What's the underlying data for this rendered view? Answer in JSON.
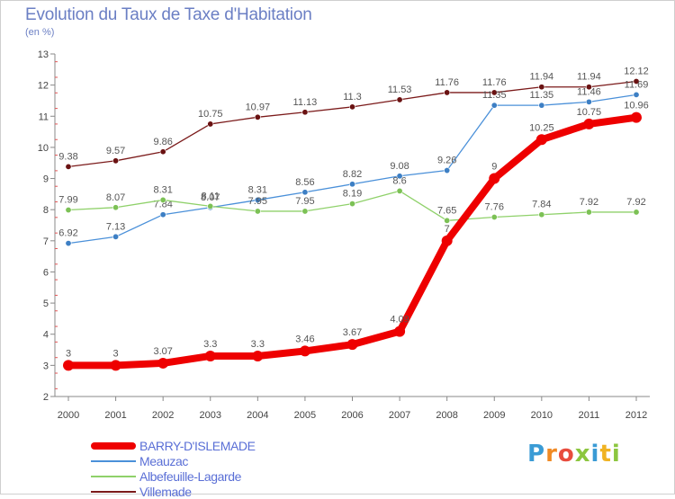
{
  "title": "Evolution du Taux de Taxe d'Habitation",
  "unit": "(en %)",
  "logo": {
    "text": "Proxiti",
    "letters": [
      {
        "ch": "P",
        "color": "#3a9bd5"
      },
      {
        "ch": "r",
        "color": "#f08a24"
      },
      {
        "ch": "o",
        "color": "#e84c3d"
      },
      {
        "ch": "x",
        "color": "#8cc63f"
      },
      {
        "ch": "i",
        "color": "#3a9bd5"
      },
      {
        "ch": "t",
        "color": "#f0b323"
      },
      {
        "ch": "i",
        "color": "#8cc63f"
      }
    ]
  },
  "chart_data": {
    "type": "line",
    "title": "Evolution du Taux de Taxe d'Habitation",
    "ylabel": "(en %)",
    "x": [
      "2000",
      "2001",
      "2002",
      "2003",
      "2004",
      "2005",
      "2006",
      "2007",
      "2008",
      "2009",
      "2010",
      "2011",
      "2012"
    ],
    "ylim": [
      2,
      13
    ],
    "yticks": [
      2,
      3,
      4,
      5,
      6,
      7,
      8,
      9,
      10,
      11,
      12,
      13
    ],
    "grid": false,
    "legend_position": "bottom-left",
    "series": [
      {
        "name": "Villemade",
        "color": "#7b1a1a",
        "marker": "#6a1212",
        "width": 1.3,
        "values": [
          9.38,
          9.57,
          9.86,
          10.75,
          10.97,
          11.13,
          11.3,
          11.53,
          11.76,
          11.76,
          11.94,
          11.94,
          12.12
        ],
        "labels": [
          "9.38",
          "9.57",
          "9.86",
          "10.75",
          "10.97",
          "11.13",
          "11.3",
          "11.53",
          "11.76",
          "11.76",
          "11.94",
          "11.94",
          "12.12"
        ]
      },
      {
        "name": "Meauzac",
        "color": "#4a90d9",
        "marker": "#3d7fc4",
        "width": 1.3,
        "values": [
          6.92,
          7.13,
          7.84,
          8.07,
          8.31,
          8.56,
          8.82,
          9.08,
          9.26,
          11.35,
          11.35,
          11.46,
          11.69
        ],
        "labels": [
          "6.92",
          "7.13",
          "7.84",
          "8.07",
          "8.31",
          "8.56",
          "8.82",
          "9.08",
          "9.26",
          "11.35",
          "11.35",
          "11.46",
          "11.69"
        ]
      },
      {
        "name": "Albefeuille-Lagarde",
        "color": "#8fd16a",
        "marker": "#7cc155",
        "width": 1.3,
        "values": [
          7.99,
          8.07,
          8.31,
          8.11,
          7.95,
          7.95,
          8.19,
          8.6,
          7.65,
          7.76,
          7.84,
          7.92,
          7.92
        ],
        "labels": [
          "7.99",
          "8.07",
          "8.31",
          "8.11",
          "7.95",
          "7.95",
          "8.19",
          "8.6",
          "7.65",
          "7.76",
          "7.84",
          "7.92",
          "7.92"
        ]
      },
      {
        "name": "BARRY-D'ISLEMADE",
        "color": "#ee0000",
        "marker": "#ee0000",
        "width": 8,
        "values": [
          3,
          3,
          3.07,
          3.3,
          3.3,
          3.46,
          3.67,
          4.09,
          7,
          9,
          10.25,
          10.75,
          10.96
        ],
        "labels": [
          "3",
          "3",
          "3.07",
          "3.3",
          "3.3",
          "3.46",
          "3.67",
          "4.09",
          "7",
          "9",
          "10.25",
          "10.75",
          "10.96"
        ]
      }
    ],
    "legend": [
      {
        "name": "BARRY-D'ISLEMADE",
        "color": "#ee0000"
      },
      {
        "name": "Meauzac",
        "color": "#4a90d9"
      },
      {
        "name": "Albefeuille-Lagarde",
        "color": "#8fd16a"
      },
      {
        "name": "Villemade",
        "color": "#7b1a1a"
      }
    ]
  }
}
